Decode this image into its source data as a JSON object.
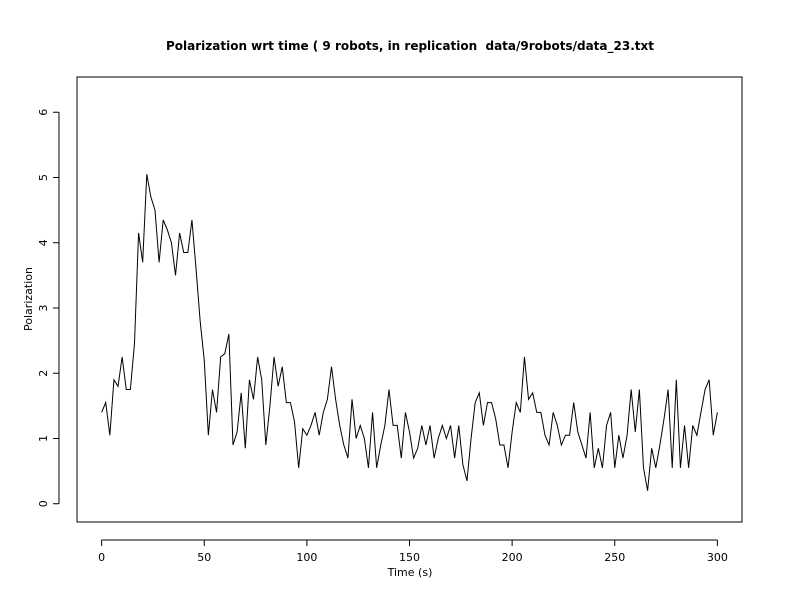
{
  "chart_data": {
    "type": "line",
    "title": "Polarization wrt time ( 9 robots, in replication  data/9robots/data_23.txt",
    "x_label": "Time (s)",
    "y_label": "Polarization",
    "x": [
      0,
      2,
      4,
      6,
      8,
      10,
      12,
      14,
      16,
      18,
      20,
      22,
      24,
      26,
      28,
      30,
      32,
      34,
      36,
      38,
      40,
      42,
      44,
      46,
      48,
      50,
      52,
      54,
      56,
      58,
      60,
      62,
      64,
      66,
      68,
      70,
      72,
      74,
      76,
      78,
      80,
      82,
      84,
      86,
      88,
      90,
      92,
      94,
      96,
      98,
      100,
      102,
      104,
      106,
      108,
      110,
      112,
      114,
      116,
      118,
      120,
      122,
      124,
      126,
      128,
      130,
      132,
      134,
      136,
      138,
      140,
      142,
      144,
      146,
      148,
      150,
      152,
      154,
      156,
      158,
      160,
      162,
      164,
      166,
      168,
      170,
      172,
      174,
      176,
      178,
      180,
      182,
      184,
      186,
      188,
      190,
      192,
      194,
      196,
      198,
      200,
      202,
      204,
      206,
      208,
      210,
      212,
      214,
      216,
      218,
      220,
      222,
      224,
      226,
      228,
      230,
      232,
      234,
      236,
      238,
      240,
      242,
      244,
      246,
      248,
      250,
      252,
      254,
      256,
      258,
      260,
      262,
      264,
      266,
      268,
      270,
      272,
      274,
      276,
      278,
      280,
      282,
      284,
      286,
      288,
      290,
      292,
      294,
      296,
      298,
      300
    ],
    "values": [
      1.4,
      1.55,
      1.05,
      1.9,
      1.8,
      2.25,
      1.75,
      1.75,
      2.45,
      4.15,
      3.7,
      5.05,
      4.7,
      4.5,
      3.7,
      4.35,
      4.2,
      4.0,
      3.5,
      4.15,
      3.85,
      3.85,
      4.35,
      3.6,
      2.8,
      2.2,
      1.05,
      1.75,
      1.4,
      2.25,
      2.3,
      2.6,
      0.9,
      1.1,
      1.7,
      0.85,
      1.9,
      1.6,
      2.25,
      1.9,
      0.9,
      1.5,
      2.25,
      1.8,
      2.1,
      1.55,
      1.55,
      1.25,
      0.55,
      1.15,
      1.05,
      1.2,
      1.4,
      1.05,
      1.4,
      1.6,
      2.1,
      1.6,
      1.2,
      0.9,
      0.7,
      1.6,
      1.0,
      1.2,
      1.0,
      0.55,
      1.4,
      0.55,
      0.9,
      1.2,
      1.75,
      1.2,
      1.2,
      0.7,
      1.4,
      1.1,
      0.7,
      0.85,
      1.2,
      0.9,
      1.2,
      0.7,
      1.0,
      1.2,
      1.0,
      1.2,
      0.7,
      1.2,
      0.6,
      0.35,
      1.0,
      1.55,
      1.7,
      1.2,
      1.55,
      1.55,
      1.3,
      0.9,
      0.9,
      0.55,
      1.1,
      1.55,
      1.4,
      2.25,
      1.6,
      1.7,
      1.4,
      1.4,
      1.05,
      0.9,
      1.4,
      1.2,
      0.9,
      1.05,
      1.05,
      1.55,
      1.1,
      0.9,
      0.7,
      1.4,
      0.55,
      0.85,
      0.55,
      1.2,
      1.4,
      0.55,
      1.05,
      0.7,
      1.05,
      1.75,
      1.1,
      1.75,
      0.55,
      0.2,
      0.85,
      0.55,
      0.9,
      1.3,
      1.75,
      0.55,
      1.9,
      0.55,
      1.2,
      0.55,
      1.2,
      1.05,
      1.4,
      1.75,
      1.9,
      1.05,
      1.4
    ],
    "color": "#000000",
    "xlim": [
      -12,
      312
    ],
    "ylim": [
      -0.28,
      6.54
    ],
    "xticks": [
      0,
      50,
      100,
      150,
      200,
      250,
      300
    ],
    "yticks": [
      0,
      1,
      2,
      3,
      4,
      5,
      6
    ]
  }
}
